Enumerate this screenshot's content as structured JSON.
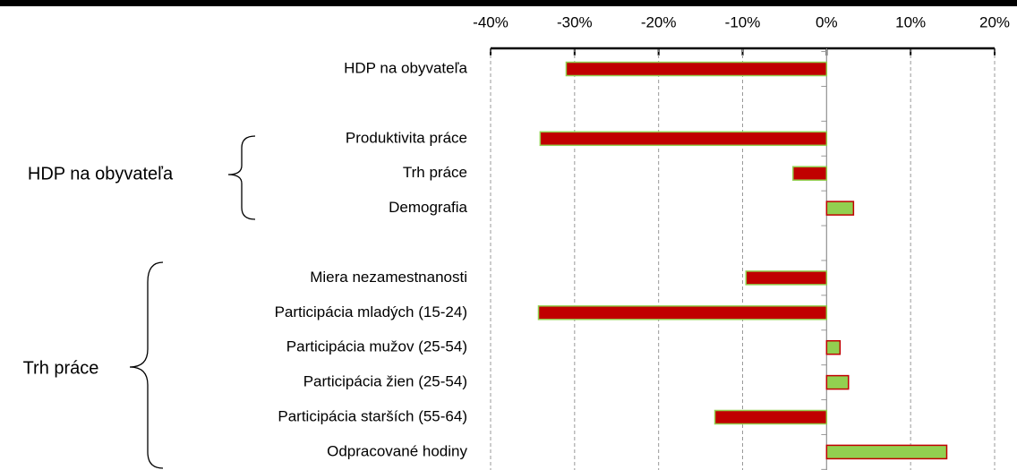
{
  "chart_data": {
    "type": "bar",
    "orientation": "horizontal",
    "categories": [
      "HDP na obyvateľa",
      null,
      "Produktivita práce",
      "Trh práce",
      "Demografia",
      null,
      "Miera nezamestnanosti",
      "Participácia mladých (15-24)",
      "Participácia mužov (25-54)",
      "Participácia žien (25-54)",
      "Participácia starších (55-64)",
      "Odpracované hodiny"
    ],
    "values": [
      -31,
      null,
      -34.1,
      -4,
      3.2,
      null,
      -9.6,
      -34.3,
      1.6,
      2.6,
      -13.3,
      14.3
    ],
    "color": "#c00000",
    "positive_color": "#92d050",
    "xlim": [
      -40,
      20
    ],
    "xticks": [
      {
        "value": -40,
        "label": "-40%"
      },
      {
        "value": -30,
        "label": "-30%"
      },
      {
        "value": -20,
        "label": "-20%"
      },
      {
        "value": -10,
        "label": "-10%"
      },
      {
        "value": 0,
        "label": "0%"
      },
      {
        "value": 10,
        "label": "10%"
      },
      {
        "value": 20,
        "label": "20%"
      }
    ],
    "grid": true,
    "annotations": [
      "HDP na obyvateľa",
      "Trh práce"
    ]
  }
}
